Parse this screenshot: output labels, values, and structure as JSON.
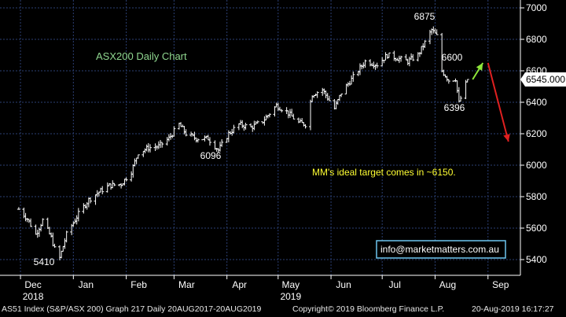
{
  "chart_data": {
    "type": "ohlc",
    "title": "ASX200 Daily Chart",
    "last_price_label": "6545.000",
    "ylim": [
      5300,
      7050
    ],
    "y_ticks": [
      "5400",
      "5600",
      "5800",
      "6000",
      "6200",
      "6400",
      "6600",
      "6800",
      "7000"
    ],
    "x_ticks": [
      {
        "label": "Dec",
        "year": "2018"
      },
      {
        "label": "Jan",
        "year": ""
      },
      {
        "label": "Feb",
        "year": ""
      },
      {
        "label": "Mar",
        "year": ""
      },
      {
        "label": "Apr",
        "year": ""
      },
      {
        "label": "May",
        "year": "2019"
      },
      {
        "label": "Jun",
        "year": ""
      },
      {
        "label": "Jul",
        "year": ""
      },
      {
        "label": "Aug",
        "year": ""
      },
      {
        "label": "Sep",
        "year": ""
      }
    ],
    "annotations": [
      {
        "text": "5410",
        "value": 5410
      },
      {
        "text": "6096",
        "value": 6096
      },
      {
        "text": "6875",
        "value": 6875
      },
      {
        "text": "6600",
        "value": 6600
      },
      {
        "text": "6396",
        "value": 6396
      },
      {
        "text": "MM's ideal target comes in ~6150."
      }
    ],
    "close_path": [
      [
        "2018-11-30",
        5720
      ],
      [
        "2018-12-05",
        5660
      ],
      [
        "2018-12-10",
        5560
      ],
      [
        "2018-12-14",
        5650
      ],
      [
        "2018-12-19",
        5540
      ],
      [
        "2018-12-21",
        5468
      ],
      [
        "2018-12-24",
        5410
      ],
      [
        "2018-12-28",
        5560
      ],
      [
        "2019-01-04",
        5690
      ],
      [
        "2019-01-10",
        5780
      ],
      [
        "2019-01-16",
        5830
      ],
      [
        "2019-01-22",
        5870
      ],
      [
        "2019-01-29",
        5880
      ],
      [
        "2019-02-04",
        5960
      ],
      [
        "2019-02-08",
        6080
      ],
      [
        "2019-02-14",
        6110
      ],
      [
        "2019-02-20",
        6120
      ],
      [
        "2019-02-26",
        6170
      ],
      [
        "2019-03-04",
        6260
      ],
      [
        "2019-03-08",
        6200
      ],
      [
        "2019-03-14",
        6170
      ],
      [
        "2019-03-21",
        6170
      ],
      [
        "2019-03-27",
        6096
      ],
      [
        "2019-04-02",
        6200
      ],
      [
        "2019-04-08",
        6260
      ],
      [
        "2019-04-15",
        6240
      ],
      [
        "2019-04-22",
        6280
      ],
      [
        "2019-04-30",
        6380
      ],
      [
        "2019-05-06",
        6340
      ],
      [
        "2019-05-13",
        6270
      ],
      [
        "2019-05-17",
        6260
      ],
      [
        "2019-05-21",
        6450
      ],
      [
        "2019-05-27",
        6480
      ],
      [
        "2019-06-03",
        6360
      ],
      [
        "2019-06-07",
        6460
      ],
      [
        "2019-06-14",
        6560
      ],
      [
        "2019-06-21",
        6660
      ],
      [
        "2019-06-28",
        6640
      ],
      [
        "2019-07-04",
        6700
      ],
      [
        "2019-07-10",
        6680
      ],
      [
        "2019-07-16",
        6660
      ],
      [
        "2019-07-22",
        6700
      ],
      [
        "2019-07-30",
        6860
      ],
      [
        "2019-08-02",
        6820
      ],
      [
        "2019-08-05",
        6600
      ],
      [
        "2019-08-09",
        6540
      ],
      [
        "2019-08-13",
        6550
      ],
      [
        "2019-08-15",
        6396
      ],
      [
        "2019-08-20",
        6545
      ]
    ],
    "arrow_up": {
      "from": [
        "2019-08-23",
        6545
      ],
      "to": [
        "2019-08-29",
        6650
      ]
    },
    "arrow_down": {
      "from": [
        "2019-09-01",
        6650
      ],
      "to": [
        "2019-09-13",
        6150
      ]
    },
    "colors": {
      "background": "#000000",
      "grid": "#2b3f73",
      "bars": "#ffffff",
      "title": "#8fd68f",
      "target_text": "#ffff33",
      "arrow_up": "#8ee63a",
      "arrow_down": "#e02020",
      "badge_border": "#6ec6f0"
    }
  },
  "labels": {
    "email": "info@marketmatters.com.au",
    "footer_left": "AS51 Index (S&P/ASX 200) Graph 217  Daily 20AUG2017-20AUG2019",
    "footer_copyright": "Copyright© 2019 Bloomberg Finance L.P.",
    "footer_time": "20-Aug-2019 16:17:27"
  }
}
